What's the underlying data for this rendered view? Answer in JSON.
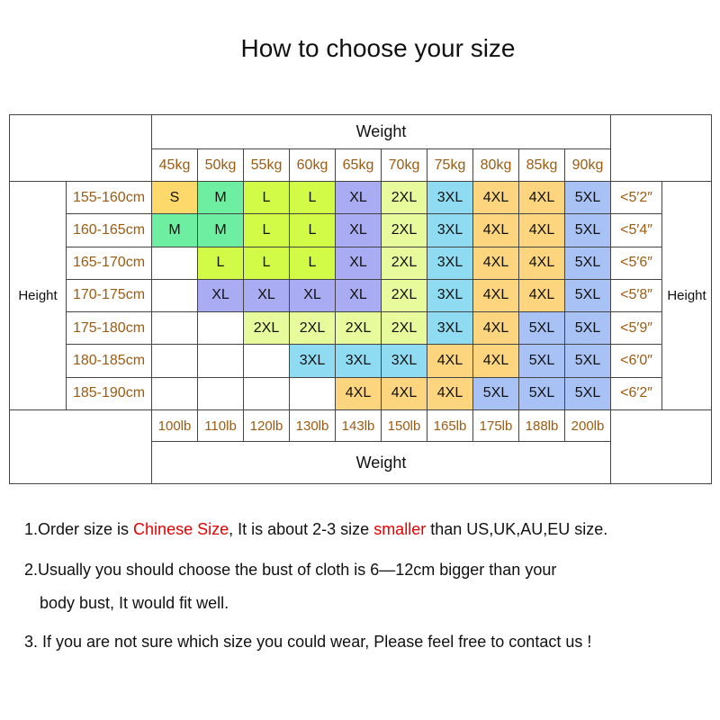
{
  "title": "How to choose your size",
  "table": {
    "weight_label": "Weight",
    "height_label": "Height",
    "label_color": "#9c5b12",
    "kg": [
      "45kg",
      "50kg",
      "55kg",
      "60kg",
      "65kg",
      "70kg",
      "75kg",
      "80kg",
      "85kg",
      "90kg"
    ],
    "lb": [
      "100lb",
      "110lb",
      "120lb",
      "130lb",
      "143lb",
      "150lb",
      "165lb",
      "175lb",
      "188lb",
      "200lb"
    ],
    "rows": [
      {
        "height": "155-160cm",
        "imperial": "<5′2″",
        "sizes": [
          "S",
          "M",
          "L",
          "L",
          "XL",
          "2XL",
          "3XL",
          "4XL",
          "4XL",
          "5XL"
        ]
      },
      {
        "height": "160-165cm",
        "imperial": "<5′4″",
        "sizes": [
          "M",
          "M",
          "L",
          "L",
          "XL",
          "2XL",
          "3XL",
          "4XL",
          "4XL",
          "5XL"
        ]
      },
      {
        "height": "165-170cm",
        "imperial": "<5′6″",
        "sizes": [
          null,
          "L",
          "L",
          "L",
          "XL",
          "2XL",
          "3XL",
          "4XL",
          "4XL",
          "5XL"
        ]
      },
      {
        "height": "170-175cm",
        "imperial": "<5′8″",
        "sizes": [
          null,
          "XL",
          "XL",
          "XL",
          "XL",
          "2XL",
          "3XL",
          "4XL",
          "4XL",
          "5XL"
        ]
      },
      {
        "height": "175-180cm",
        "imperial": "<5′9″",
        "sizes": [
          null,
          null,
          "2XL",
          "2XL",
          "2XL",
          "2XL",
          "3XL",
          "4XL",
          "5XL",
          "5XL"
        ]
      },
      {
        "height": "180-185cm",
        "imperial": "<6′0″",
        "sizes": [
          null,
          null,
          null,
          "3XL",
          "3XL",
          "3XL",
          "4XL",
          "4XL",
          "5XL",
          "5XL"
        ]
      },
      {
        "height": "185-190cm",
        "imperial": "<6′2″",
        "sizes": [
          null,
          null,
          null,
          null,
          "4XL",
          "4XL",
          "4XL",
          "5XL",
          "5XL",
          "5XL"
        ]
      }
    ],
    "size_colors": {
      "S": "#fdd86a",
      "M": "#6eeea0",
      "L": "#d2fb48",
      "XL": "#a9acf2",
      "2XL": "#e7fb9c",
      "3XL": "#8fdcf2",
      "4XL": "#fdd57e",
      "5XL": "#a9c2f6"
    }
  },
  "highlight_color": "#e60000",
  "notes": [
    {
      "lines": [
        [
          {
            "text": "1.Order size is "
          },
          {
            "text": "Chinese Size",
            "highlight": true
          },
          {
            "text": ", It is about 2-3 size "
          },
          {
            "text": "smaller",
            "highlight": true
          },
          {
            "text": " than US,UK,AU,EU size."
          }
        ]
      ]
    },
    {
      "lines": [
        [
          {
            "text": "2.Usually you should choose the bust of cloth is 6—12cm bigger than your"
          }
        ],
        [
          {
            "text": "body bust, It would fit well."
          }
        ]
      ]
    },
    {
      "lines": [
        [
          {
            "text": "3. If you are not sure which size you could wear, Please feel free to contact us !"
          }
        ]
      ]
    }
  ]
}
